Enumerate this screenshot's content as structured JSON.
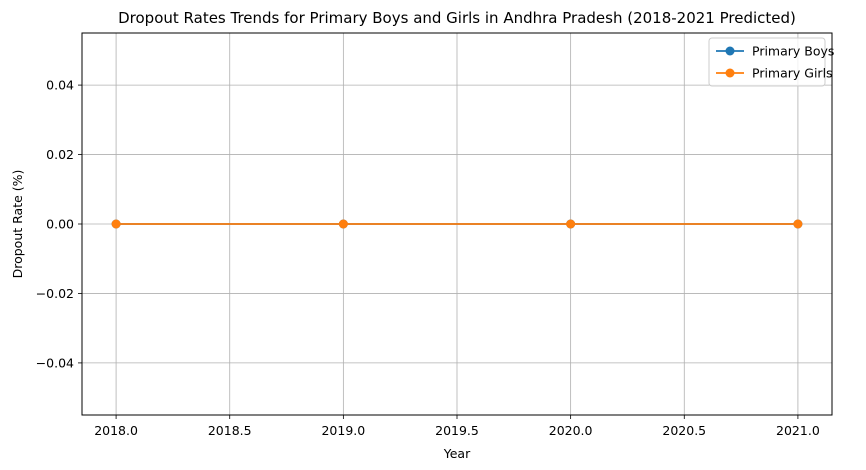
{
  "chart_data": {
    "type": "line",
    "title": "Dropout Rates Trends for Primary Boys and Girls in Andhra Pradesh (2018-2021 Predicted)",
    "xlabel": "Year",
    "ylabel": "Dropout Rate (%)",
    "x": [
      2018,
      2019,
      2020,
      2021
    ],
    "series": [
      {
        "name": "Primary Boys",
        "values": [
          0,
          0,
          0,
          0
        ],
        "color": "#1f77b4",
        "marker": "circle"
      },
      {
        "name": "Primary Girls",
        "values": [
          0,
          0,
          0,
          0
        ],
        "color": "#ff7f0e",
        "marker": "circle"
      }
    ],
    "xlim": [
      2017.85,
      2021.15
    ],
    "ylim": [
      -0.055,
      0.055
    ],
    "xticks": [
      2018.0,
      2018.5,
      2019.0,
      2019.5,
      2020.0,
      2020.5,
      2021.0
    ],
    "xtick_labels": [
      "2018.0",
      "2018.5",
      "2019.0",
      "2019.5",
      "2020.0",
      "2020.5",
      "2021.0"
    ],
    "yticks": [
      -0.04,
      -0.02,
      0.0,
      0.02,
      0.04
    ],
    "ytick_labels": [
      "−0.04",
      "−0.02",
      "0.00",
      "0.02",
      "0.04"
    ],
    "grid": true,
    "legend_position": "top-right",
    "grid_color": "#b0b0b0"
  }
}
